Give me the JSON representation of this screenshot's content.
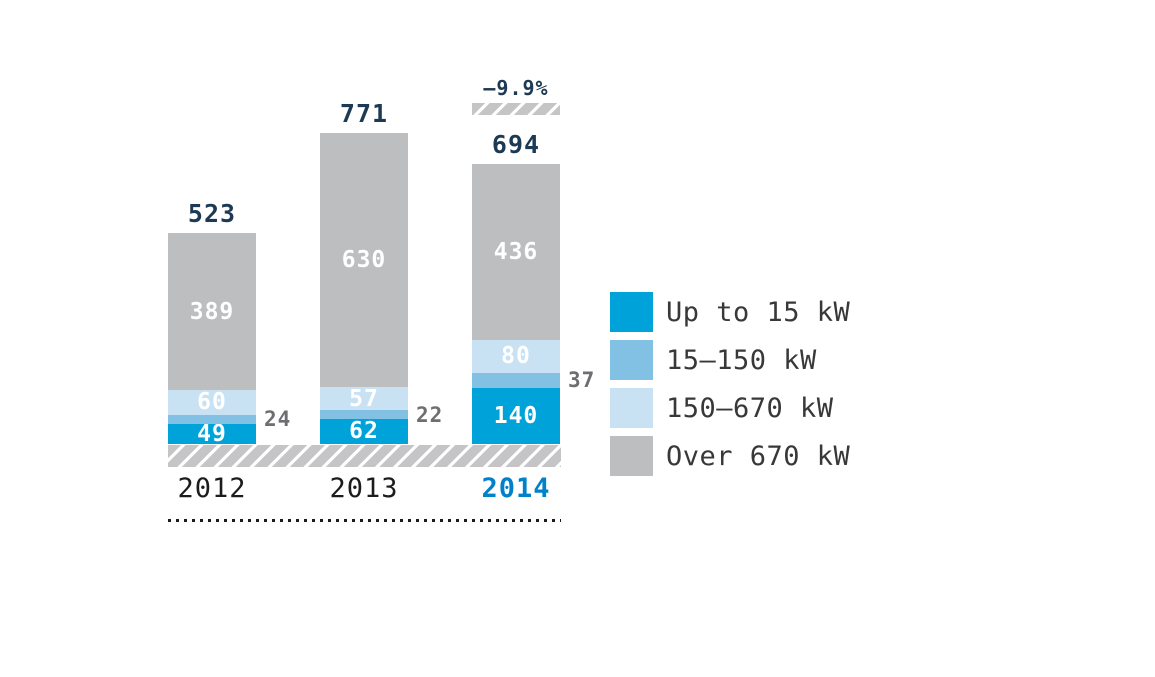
{
  "chart_data": {
    "type": "bar",
    "variant": "stacked-column",
    "categories": [
      "2012",
      "2013",
      "2014"
    ],
    "series": [
      {
        "name": "Up to 15 kW",
        "color": "#00a3d9",
        "values": [
          49,
          62,
          140
        ],
        "label_placement": "inside"
      },
      {
        "name": "15–150 kW",
        "color": "#82c1e3",
        "values": [
          24,
          22,
          37
        ],
        "label_placement": "outside-right"
      },
      {
        "name": "150–670 kW",
        "color": "#c8e2f4",
        "values": [
          60,
          57,
          80
        ],
        "label_placement": "inside"
      },
      {
        "name": "Over 670 kW",
        "color": "#bdbec0",
        "values": [
          389,
          630,
          436
        ],
        "label_placement": "inside"
      }
    ],
    "totals": [
      523,
      771,
      694
    ],
    "annotation": {
      "text": "–9.9%",
      "category": "2014"
    },
    "highlighted_category": "2014",
    "legend_position": "right",
    "grid": false,
    "axes_visible": false,
    "ylim": [
      0,
      780
    ],
    "title": "",
    "xlabel": "",
    "ylabel": ""
  },
  "styles": {
    "total_label_color": "#1d3a55",
    "annotation_color": "#1d3a55",
    "outside_label_color": "#6d6e71",
    "category_label_color": "#1c1c1c",
    "highlighted_category_color": "#0082c9",
    "inside_label_color": "#ffffff",
    "legend_text_color": "#383838",
    "hatch_base_color": "#c5c5c7",
    "hatch_stripe_color": "#ffffff",
    "separator_color": "#1b1b1b",
    "background": "#ffffff"
  }
}
